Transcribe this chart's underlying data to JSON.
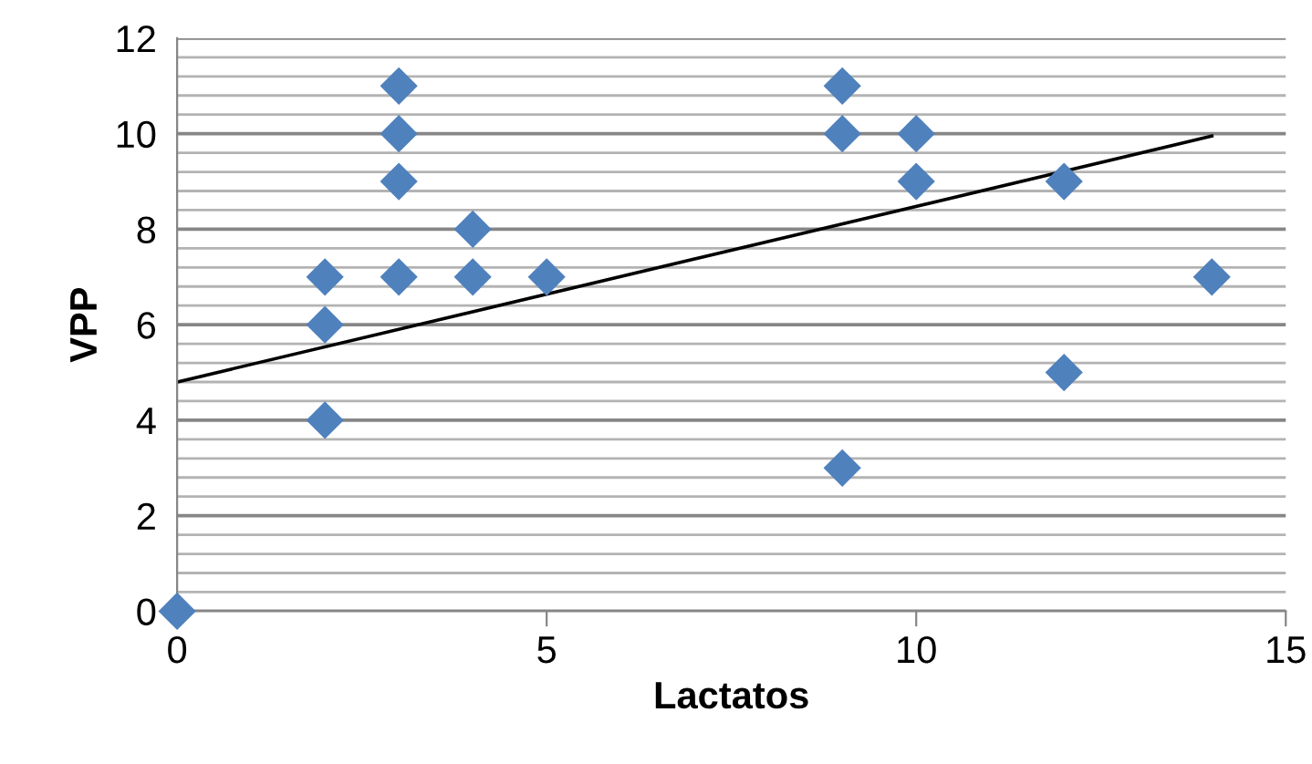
{
  "chart_data": {
    "type": "scatter",
    "xlabel": "Lactatos",
    "ylabel": "VPP",
    "xlim": [
      0,
      15
    ],
    "xticks": [
      0,
      5,
      10,
      15
    ],
    "ylim": [
      0,
      12
    ],
    "yticks": [
      0,
      2,
      4,
      6,
      8,
      10,
      12
    ],
    "grid": "y",
    "legend": false,
    "series": [
      {
        "marker": "diamond",
        "color": "#4f81bd",
        "x": [
          0,
          2,
          2,
          2,
          3,
          3,
          3,
          3,
          4,
          4,
          5,
          9,
          9,
          9,
          10,
          10,
          12,
          12,
          14
        ],
        "values": [
          0,
          4,
          6,
          7,
          7,
          9,
          10,
          11,
          7,
          8,
          7,
          3,
          10,
          11,
          9,
          10,
          5,
          9,
          7
        ]
      },
      {
        "type": "line",
        "color": "#000000",
        "x": [
          0,
          14
        ],
        "values": [
          4.8,
          9.95
        ]
      }
    ]
  }
}
